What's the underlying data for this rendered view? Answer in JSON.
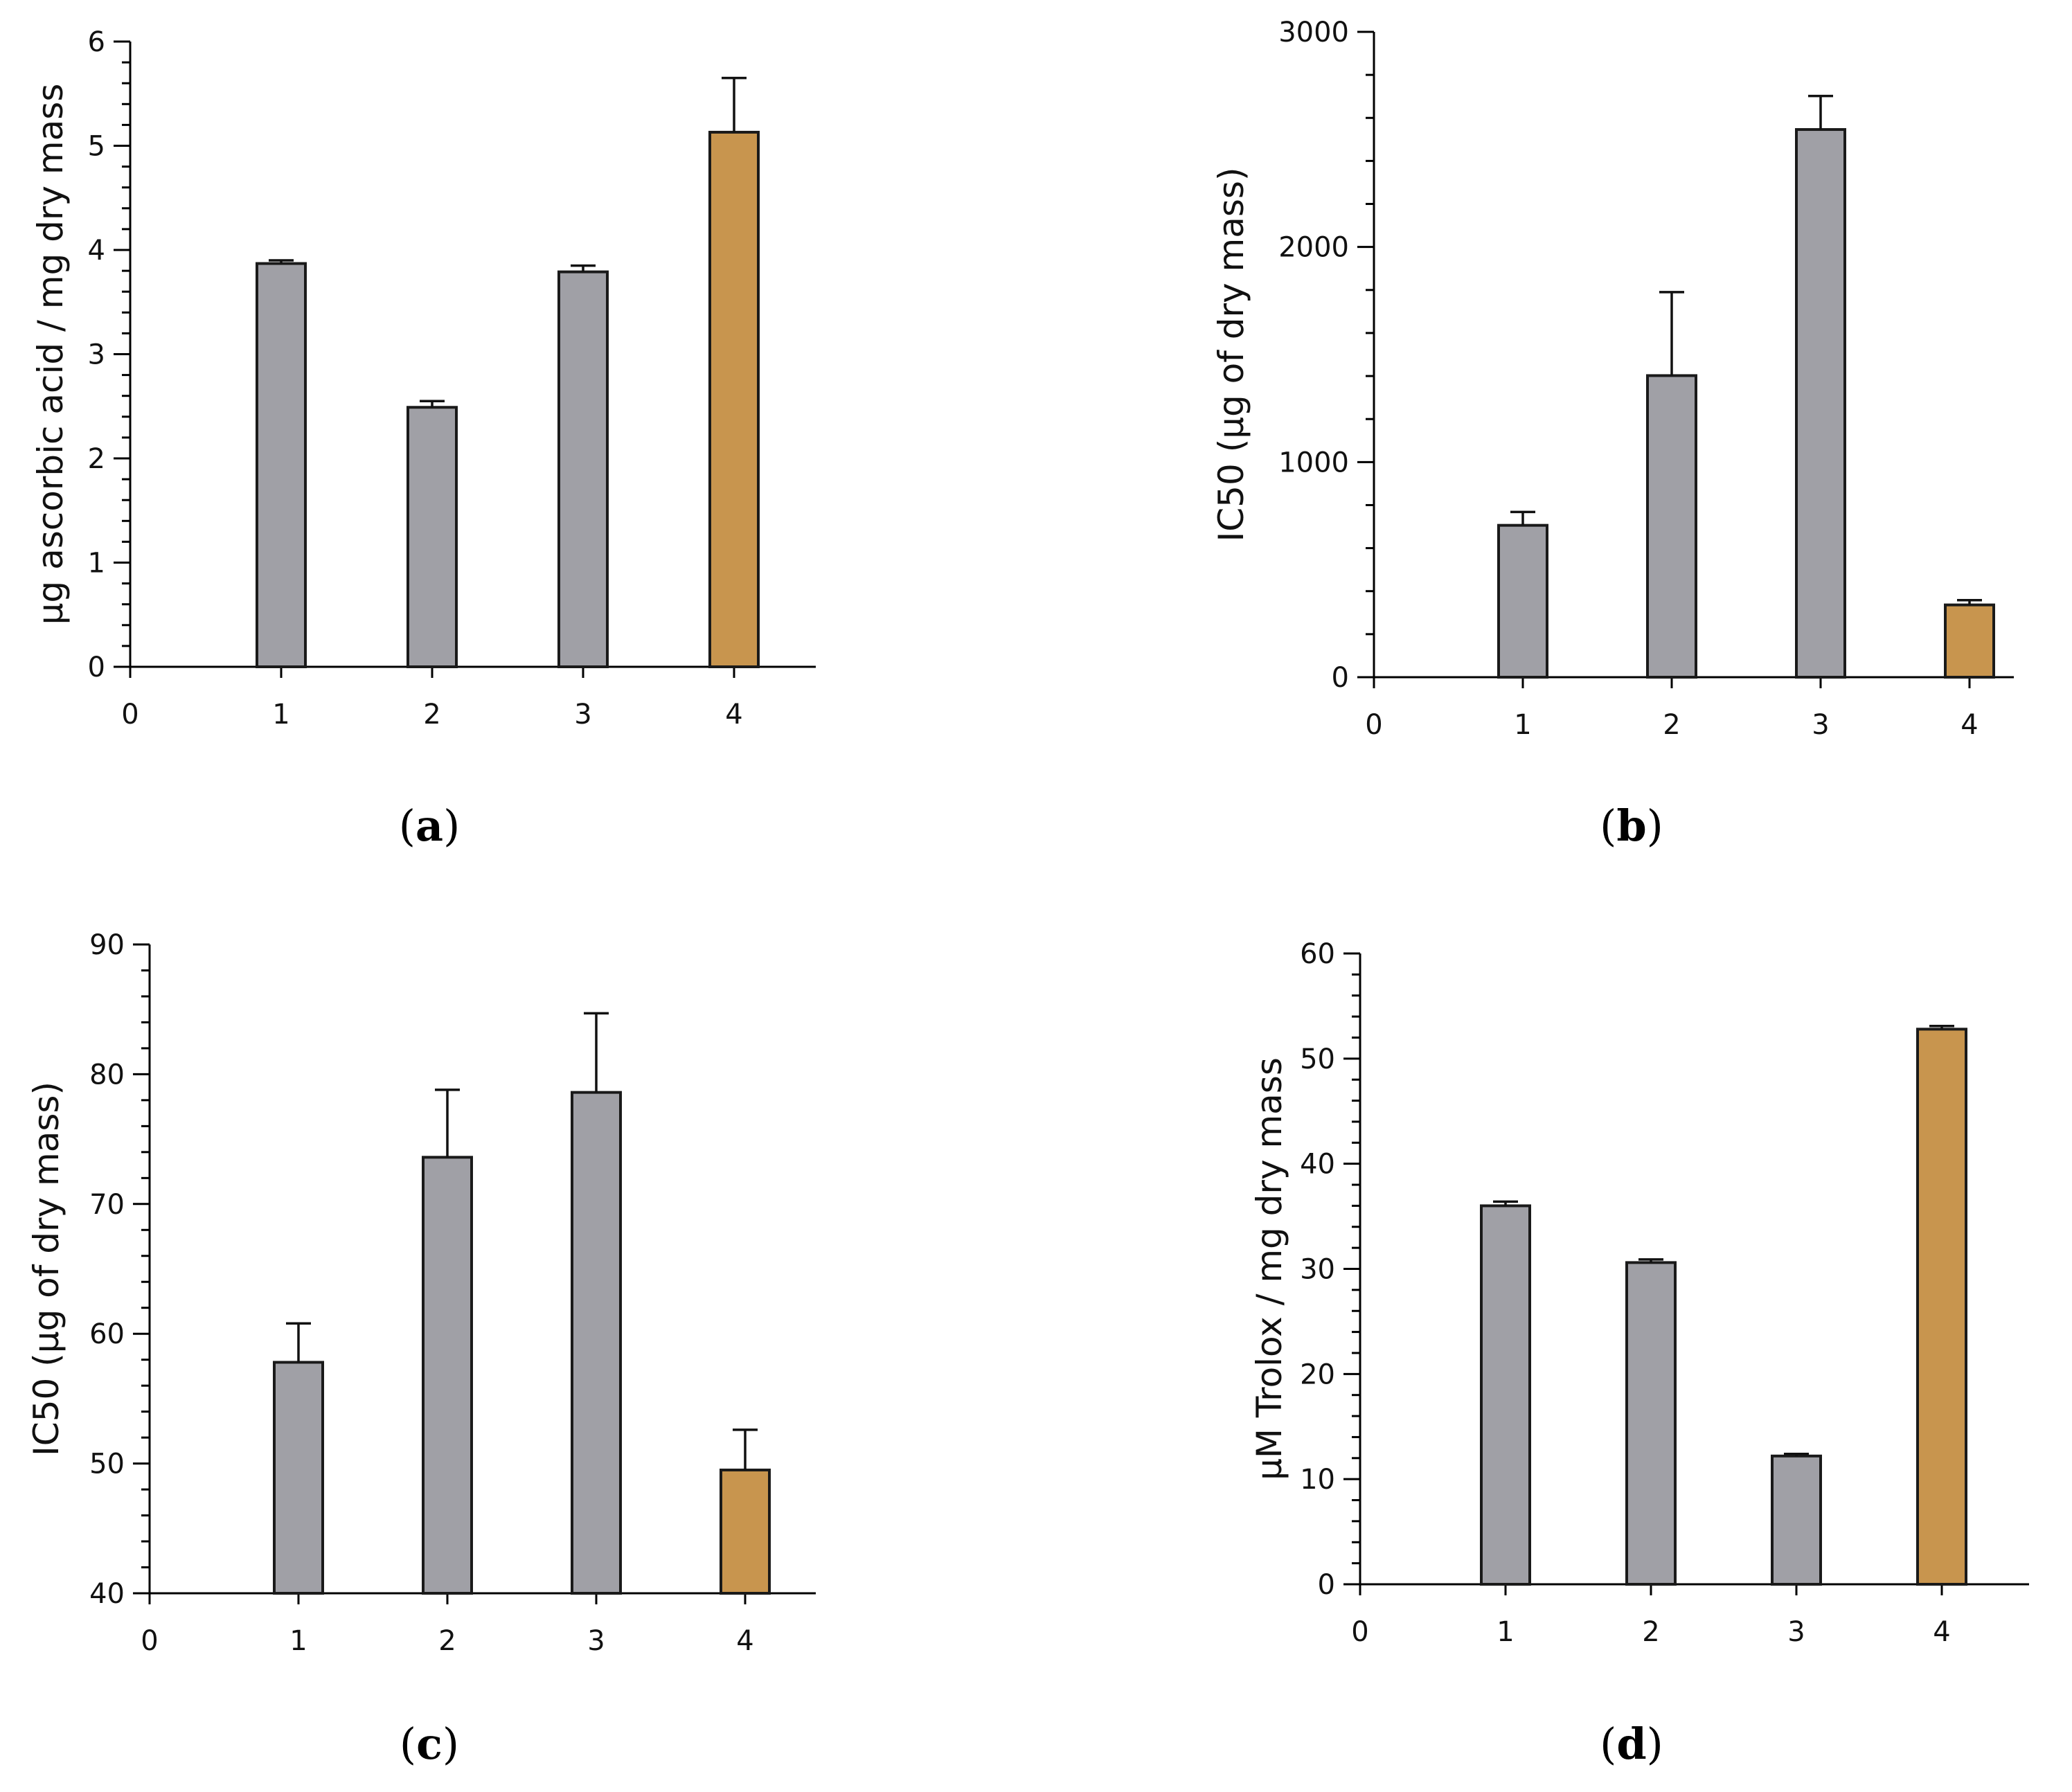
{
  "colors": {
    "bar_default": "#a0a0a6",
    "bar_highlight": "#c8954e",
    "axis": "#000000"
  },
  "chart_data": [
    {
      "panel": "a",
      "caption_letter": "a",
      "type": "bar",
      "categories": [
        "1",
        "2",
        "3",
        "4"
      ],
      "x_ticks": [
        "0",
        "1",
        "2",
        "3",
        "4"
      ],
      "values": [
        3.87,
        2.49,
        3.79,
        5.13
      ],
      "errors": [
        0.03,
        0.06,
        0.06,
        0.52
      ],
      "highlight_index": 3,
      "ylabel": "μg ascorbic acid / mg dry mass",
      "ylim": [
        0,
        6
      ],
      "y_ticks": [
        0,
        1,
        2,
        3,
        4,
        5,
        6
      ],
      "y_minor_per_major": 4
    },
    {
      "panel": "b",
      "caption_letter": "b",
      "type": "bar",
      "categories": [
        "1",
        "2",
        "3",
        "4"
      ],
      "x_ticks": [
        "0",
        "1",
        "2",
        "3",
        "4"
      ],
      "values": [
        706,
        1402,
        2546,
        336
      ],
      "errors": [
        62,
        388,
        156,
        22
      ],
      "highlight_index": 3,
      "ylabel": "IC50 (μg of dry mass)",
      "ylim": [
        0,
        3000
      ],
      "y_ticks": [
        0,
        1000,
        2000,
        3000
      ],
      "y_minor_per_major": 4
    },
    {
      "panel": "c",
      "caption_letter": "c",
      "type": "bar",
      "categories": [
        "1",
        "2",
        "3",
        "4"
      ],
      "x_ticks": [
        "0",
        "1",
        "2",
        "3",
        "4"
      ],
      "values": [
        57.8,
        73.6,
        78.6,
        49.5
      ],
      "errors": [
        3.0,
        5.2,
        6.1,
        3.1
      ],
      "highlight_index": 3,
      "ylabel": "IC50 (μg of dry mass)",
      "ylim": [
        40,
        90
      ],
      "y_ticks": [
        40,
        50,
        60,
        70,
        80,
        90
      ],
      "y_minor_per_major": 4
    },
    {
      "panel": "d",
      "caption_letter": "d",
      "type": "bar",
      "categories": [
        "1",
        "2",
        "3",
        "4"
      ],
      "x_ticks": [
        "0",
        "1",
        "2",
        "3",
        "4"
      ],
      "values": [
        36.0,
        30.6,
        12.2,
        52.8
      ],
      "errors": [
        0.4,
        0.3,
        0.2,
        0.3
      ],
      "highlight_index": 3,
      "ylabel": "μM Trolox / mg dry mass",
      "ylim": [
        0,
        60
      ],
      "y_ticks": [
        0,
        10,
        20,
        30,
        40,
        50,
        60
      ],
      "y_minor_per_major": 4
    }
  ]
}
